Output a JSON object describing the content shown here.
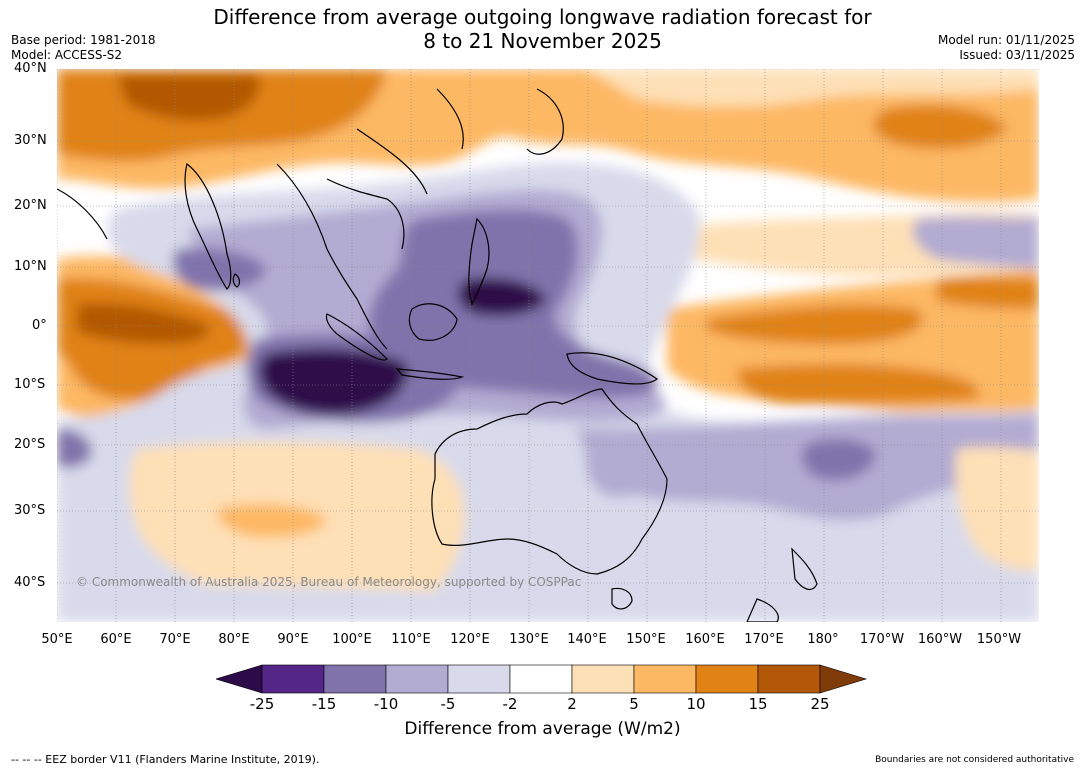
{
  "title": {
    "line1": "Difference from average outgoing longwave radiation forecast for",
    "line2": "8 to 21 November 2025"
  },
  "meta": {
    "base_period": "Base period: 1981-2018",
    "model": "Model: ACCESS-S2",
    "model_run": "Model run: 01/11/2025",
    "issued": "Issued: 03/11/2025"
  },
  "map": {
    "lat_labels": [
      "40°N",
      "30°N",
      "20°N",
      "10°N",
      "0°",
      "10°S",
      "20°S",
      "30°S",
      "40°S"
    ],
    "lon_labels": [
      "50°E",
      "60°E",
      "70°E",
      "80°E",
      "90°E",
      "100°E",
      "110°E",
      "120°E",
      "130°E",
      "140°E",
      "150°E",
      "160°E",
      "170°E",
      "180°",
      "170°W",
      "160°W",
      "150°W"
    ],
    "copyright": "© Commonwealth of Australia 2025, Bureau of Meteorology, supported by COSPPac"
  },
  "colorbar": {
    "ticks": [
      "-25",
      "-15",
      "-10",
      "-5",
      "-2",
      "2",
      "5",
      "10",
      "15",
      "25"
    ],
    "colors": {
      "below_m25": "#2d0b4a",
      "m25_m15": "#542688",
      "m15_m10": "#8073ac",
      "m10_m5": "#b2abd2",
      "m5_m2": "#d8daeb",
      "m2_p2": "#ffffff",
      "p2_p5": "#fee0b6",
      "p5_p10": "#fdb863",
      "p10_p15": "#e08214",
      "p15_p25": "#b35806",
      "above_p25": "#7f3b08"
    },
    "title": "Difference from average (W/m2)"
  },
  "footer": {
    "eez": "--  --  -- EEZ border V11 (Flanders Marine Institute, 2019).",
    "disclaimer": "Boundaries are not considered authoritative"
  }
}
